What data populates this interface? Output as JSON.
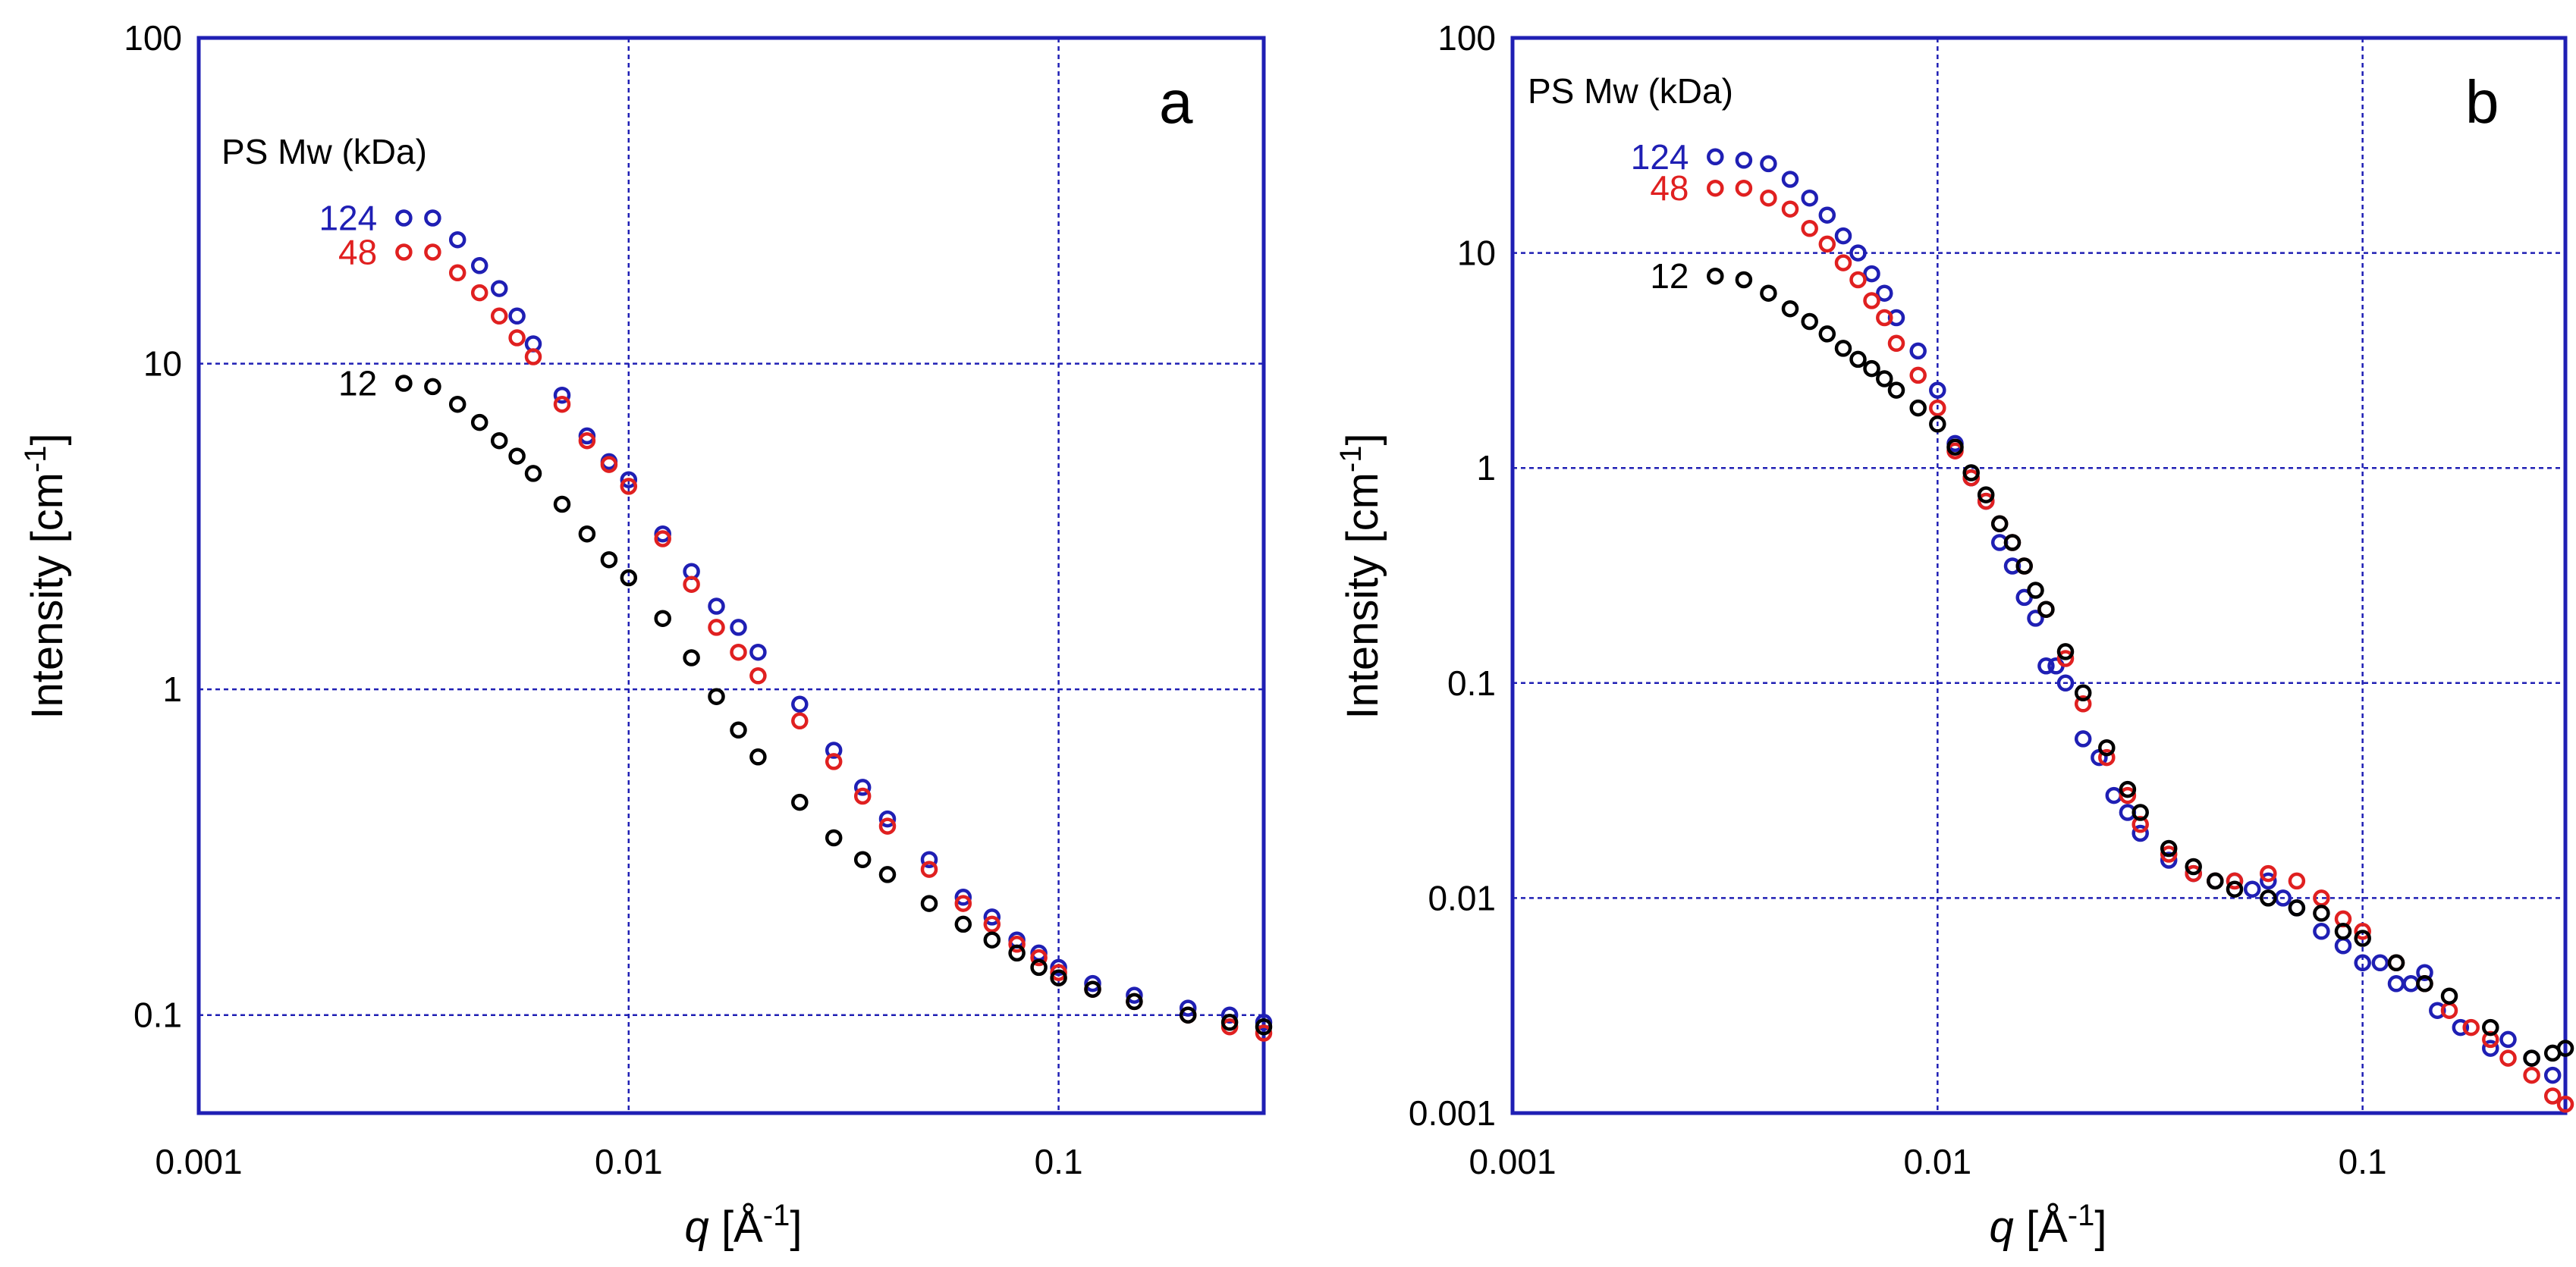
{
  "chart_data": [
    {
      "type": "scatter",
      "panel_label": "a",
      "xscale": "log",
      "yscale": "log",
      "xlim": [
        0.001,
        0.3
      ],
      "ylim": [
        0.05,
        100
      ],
      "xticks": [
        0.001,
        0.01,
        0.1
      ],
      "xtick_labels": [
        "0.001",
        "0.01",
        "0.1"
      ],
      "yticks": [
        0.1,
        1,
        10,
        100
      ],
      "ytick_labels": [
        "0.1",
        "1",
        "10",
        "100"
      ],
      "xlabel_italic": "q",
      "xlabel_unit": "[Å",
      "xlabel_sup": "-1",
      "xlabel_close": "]",
      "ylabel": "Intensity [cm",
      "ylabel_sup": "-1",
      "ylabel_close": "]",
      "grid": true,
      "legend_title": "PS Mw (kDa)",
      "series": [
        {
          "name": "124",
          "color": "#1f1fb4",
          "label_x": 0.0026,
          "label_y": 28,
          "x": [
            0.003,
            0.0035,
            0.004,
            0.0045,
            0.005,
            0.0055,
            0.006,
            0.007,
            0.008,
            0.009,
            0.01,
            0.012,
            0.014,
            0.016,
            0.018,
            0.02,
            0.025,
            0.03,
            0.035,
            0.04,
            0.05,
            0.06,
            0.07,
            0.08,
            0.09,
            0.1,
            0.12,
            0.15,
            0.2,
            0.25,
            0.3
          ],
          "y": [
            28,
            28,
            24,
            20,
            17,
            14,
            11.5,
            8,
            6,
            5,
            4.4,
            3,
            2.3,
            1.8,
            1.55,
            1.3,
            0.9,
            0.65,
            0.5,
            0.4,
            0.3,
            0.23,
            0.2,
            0.17,
            0.155,
            0.14,
            0.125,
            0.115,
            0.105,
            0.1,
            0.095
          ]
        },
        {
          "name": "48",
          "color": "#e02020",
          "label_x": 0.0026,
          "label_y": 22,
          "x": [
            0.003,
            0.0035,
            0.004,
            0.0045,
            0.005,
            0.0055,
            0.006,
            0.007,
            0.008,
            0.009,
            0.01,
            0.012,
            0.014,
            0.016,
            0.018,
            0.02,
            0.025,
            0.03,
            0.035,
            0.04,
            0.05,
            0.06,
            0.07,
            0.08,
            0.09,
            0.1,
            0.12,
            0.15,
            0.2,
            0.25,
            0.3
          ],
          "y": [
            22,
            22,
            19,
            16.5,
            14,
            12,
            10.5,
            7.5,
            5.8,
            4.9,
            4.2,
            2.9,
            2.1,
            1.55,
            1.3,
            1.1,
            0.8,
            0.6,
            0.47,
            0.38,
            0.28,
            0.22,
            0.19,
            0.165,
            0.15,
            0.135,
            0.12,
            0.11,
            0.1,
            0.092,
            0.088
          ]
        },
        {
          "name": "12",
          "color": "#000000",
          "label_x": 0.0026,
          "label_y": 8.7,
          "x": [
            0.003,
            0.0035,
            0.004,
            0.0045,
            0.005,
            0.0055,
            0.006,
            0.007,
            0.008,
            0.009,
            0.01,
            0.012,
            0.014,
            0.016,
            0.018,
            0.02,
            0.025,
            0.03,
            0.035,
            0.04,
            0.05,
            0.06,
            0.07,
            0.08,
            0.09,
            0.1,
            0.12,
            0.15,
            0.2,
            0.25,
            0.3
          ],
          "y": [
            8.7,
            8.5,
            7.5,
            6.6,
            5.8,
            5.2,
            4.6,
            3.7,
            3.0,
            2.5,
            2.2,
            1.65,
            1.25,
            0.95,
            0.75,
            0.62,
            0.45,
            0.35,
            0.3,
            0.27,
            0.22,
            0.19,
            0.17,
            0.155,
            0.14,
            0.13,
            0.12,
            0.11,
            0.1,
            0.095,
            0.092
          ]
        }
      ]
    },
    {
      "type": "scatter",
      "panel_label": "b",
      "xscale": "log",
      "yscale": "log",
      "xlim": [
        0.001,
        0.3
      ],
      "ylim": [
        0.001,
        100
      ],
      "xticks": [
        0.001,
        0.01,
        0.1
      ],
      "xtick_labels": [
        "0.001",
        "0.01",
        "0.1"
      ],
      "yticks": [
        0.001,
        0.01,
        0.1,
        1,
        10,
        100
      ],
      "ytick_labels": [
        "0.001",
        "0.01",
        "0.1",
        "1",
        "10",
        "100"
      ],
      "xlabel_italic": "q",
      "xlabel_unit": "[Å",
      "xlabel_sup": "-1",
      "xlabel_close": "]",
      "ylabel": "Intensity [cm",
      "ylabel_sup": "-1",
      "ylabel_close": "]",
      "grid": true,
      "legend_title": "PS Mw (kDa)",
      "series": [
        {
          "name": "124",
          "color": "#1f1fb4",
          "label_x": 0.0026,
          "label_y": 28,
          "x": [
            0.003,
            0.0035,
            0.004,
            0.0045,
            0.005,
            0.0055,
            0.006,
            0.0065,
            0.007,
            0.0075,
            0.008,
            0.009,
            0.01,
            0.011,
            0.012,
            0.013,
            0.014,
            0.015,
            0.016,
            0.017,
            0.018,
            0.019,
            0.02,
            0.022,
            0.024,
            0.026,
            0.028,
            0.03,
            0.035,
            0.04,
            0.045,
            0.05,
            0.055,
            0.06,
            0.065,
            0.07,
            0.08,
            0.09,
            0.1,
            0.11,
            0.12,
            0.13,
            0.14,
            0.15,
            0.17,
            0.2,
            0.22,
            0.25,
            0.28
          ],
          "y": [
            28,
            27,
            26,
            22,
            18,
            15,
            12,
            10,
            8,
            6.5,
            5,
            3.5,
            2.3,
            1.3,
            0.9,
            0.7,
            0.45,
            0.35,
            0.25,
            0.2,
            0.12,
            0.12,
            0.1,
            0.055,
            0.045,
            0.03,
            0.025,
            0.02,
            0.015,
            0.013,
            0.012,
            0.012,
            0.011,
            0.012,
            0.01,
            0.009,
            0.007,
            0.006,
            0.005,
            0.005,
            0.004,
            0.004,
            0.0045,
            0.003,
            0.0025,
            0.002,
            0.0022,
            0.0018,
            0.0015
          ]
        },
        {
          "name": "48",
          "color": "#e02020",
          "label_x": 0.0026,
          "label_y": 20,
          "x": [
            0.003,
            0.0035,
            0.004,
            0.0045,
            0.005,
            0.0055,
            0.006,
            0.0065,
            0.007,
            0.0075,
            0.008,
            0.009,
            0.01,
            0.011,
            0.012,
            0.013,
            0.014,
            0.015,
            0.016,
            0.018,
            0.02,
            0.022,
            0.025,
            0.028,
            0.03,
            0.035,
            0.04,
            0.045,
            0.05,
            0.06,
            0.07,
            0.08,
            0.09,
            0.1,
            0.12,
            0.14,
            0.16,
            0.18,
            0.2,
            0.22,
            0.25,
            0.28,
            0.3
          ],
          "y": [
            20,
            20,
            18,
            16,
            13,
            11,
            9,
            7.5,
            6,
            5,
            3.8,
            2.7,
            1.9,
            1.2,
            0.9,
            0.7,
            0.55,
            0.45,
            0.35,
            0.22,
            0.13,
            0.08,
            0.045,
            0.03,
            0.022,
            0.016,
            0.013,
            0.012,
            0.012,
            0.013,
            0.012,
            0.01,
            0.008,
            0.007,
            0.005,
            0.004,
            0.003,
            0.0025,
            0.0022,
            0.0018,
            0.0015,
            0.0012,
            0.0011
          ]
        },
        {
          "name": "12",
          "color": "#000000",
          "label_x": 0.0026,
          "label_y": 7.8,
          "x": [
            0.003,
            0.0035,
            0.004,
            0.0045,
            0.005,
            0.0055,
            0.006,
            0.0065,
            0.007,
            0.0075,
            0.008,
            0.009,
            0.01,
            0.011,
            0.012,
            0.013,
            0.014,
            0.015,
            0.016,
            0.017,
            0.018,
            0.02,
            0.022,
            0.025,
            0.028,
            0.03,
            0.035,
            0.04,
            0.045,
            0.05,
            0.06,
            0.07,
            0.08,
            0.09,
            0.1,
            0.12,
            0.14,
            0.16,
            0.2,
            0.25,
            0.28,
            0.3
          ],
          "y": [
            7.8,
            7.5,
            6.5,
            5.5,
            4.8,
            4.2,
            3.6,
            3.2,
            2.9,
            2.6,
            2.3,
            1.9,
            1.6,
            1.25,
            0.95,
            0.75,
            0.55,
            0.45,
            0.35,
            0.27,
            0.22,
            0.14,
            0.09,
            0.05,
            0.032,
            0.025,
            0.017,
            0.014,
            0.012,
            0.011,
            0.01,
            0.009,
            0.0085,
            0.007,
            0.0065,
            0.005,
            0.004,
            0.0035,
            0.0025,
            0.0018,
            0.0019,
            0.002
          ]
        }
      ]
    }
  ]
}
